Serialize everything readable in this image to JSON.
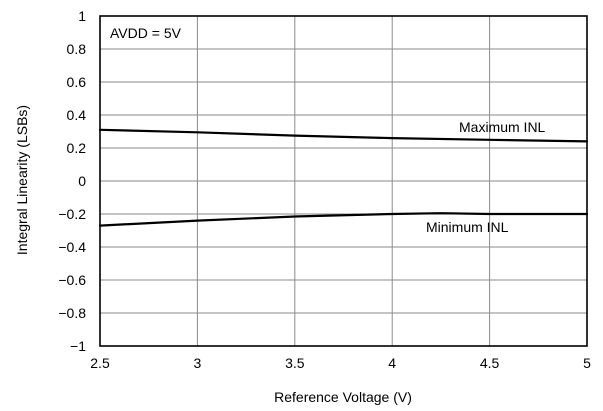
{
  "chart_data": {
    "type": "line",
    "title": "",
    "xlabel": "Reference Voltage (V)",
    "ylabel": "Integral Linearity (LSBs)",
    "xlim": [
      2.5,
      5
    ],
    "ylim": [
      -1,
      1
    ],
    "x_ticks": [
      "2.5",
      "3",
      "3.5",
      "4",
      "4.5",
      "5"
    ],
    "y_ticks": [
      "1",
      "0.8",
      "0.6",
      "0.4",
      "0.2",
      "0",
      "−0.2",
      "−0.4",
      "−0.6",
      "−0.8",
      "−1"
    ],
    "grid": true,
    "annotation": "AVDD = 5V",
    "series": [
      {
        "name": "Maximum INL",
        "x": [
          2.5,
          3.0,
          3.5,
          4.0,
          4.5,
          5.0
        ],
        "y": [
          0.31,
          0.295,
          0.275,
          0.26,
          0.25,
          0.24
        ]
      },
      {
        "name": "Minimum INL",
        "x": [
          2.5,
          3.0,
          3.5,
          4.0,
          4.25,
          4.5,
          5.0
        ],
        "y": [
          -0.27,
          -0.24,
          -0.215,
          -0.2,
          -0.195,
          -0.2,
          -0.2
        ]
      }
    ]
  }
}
